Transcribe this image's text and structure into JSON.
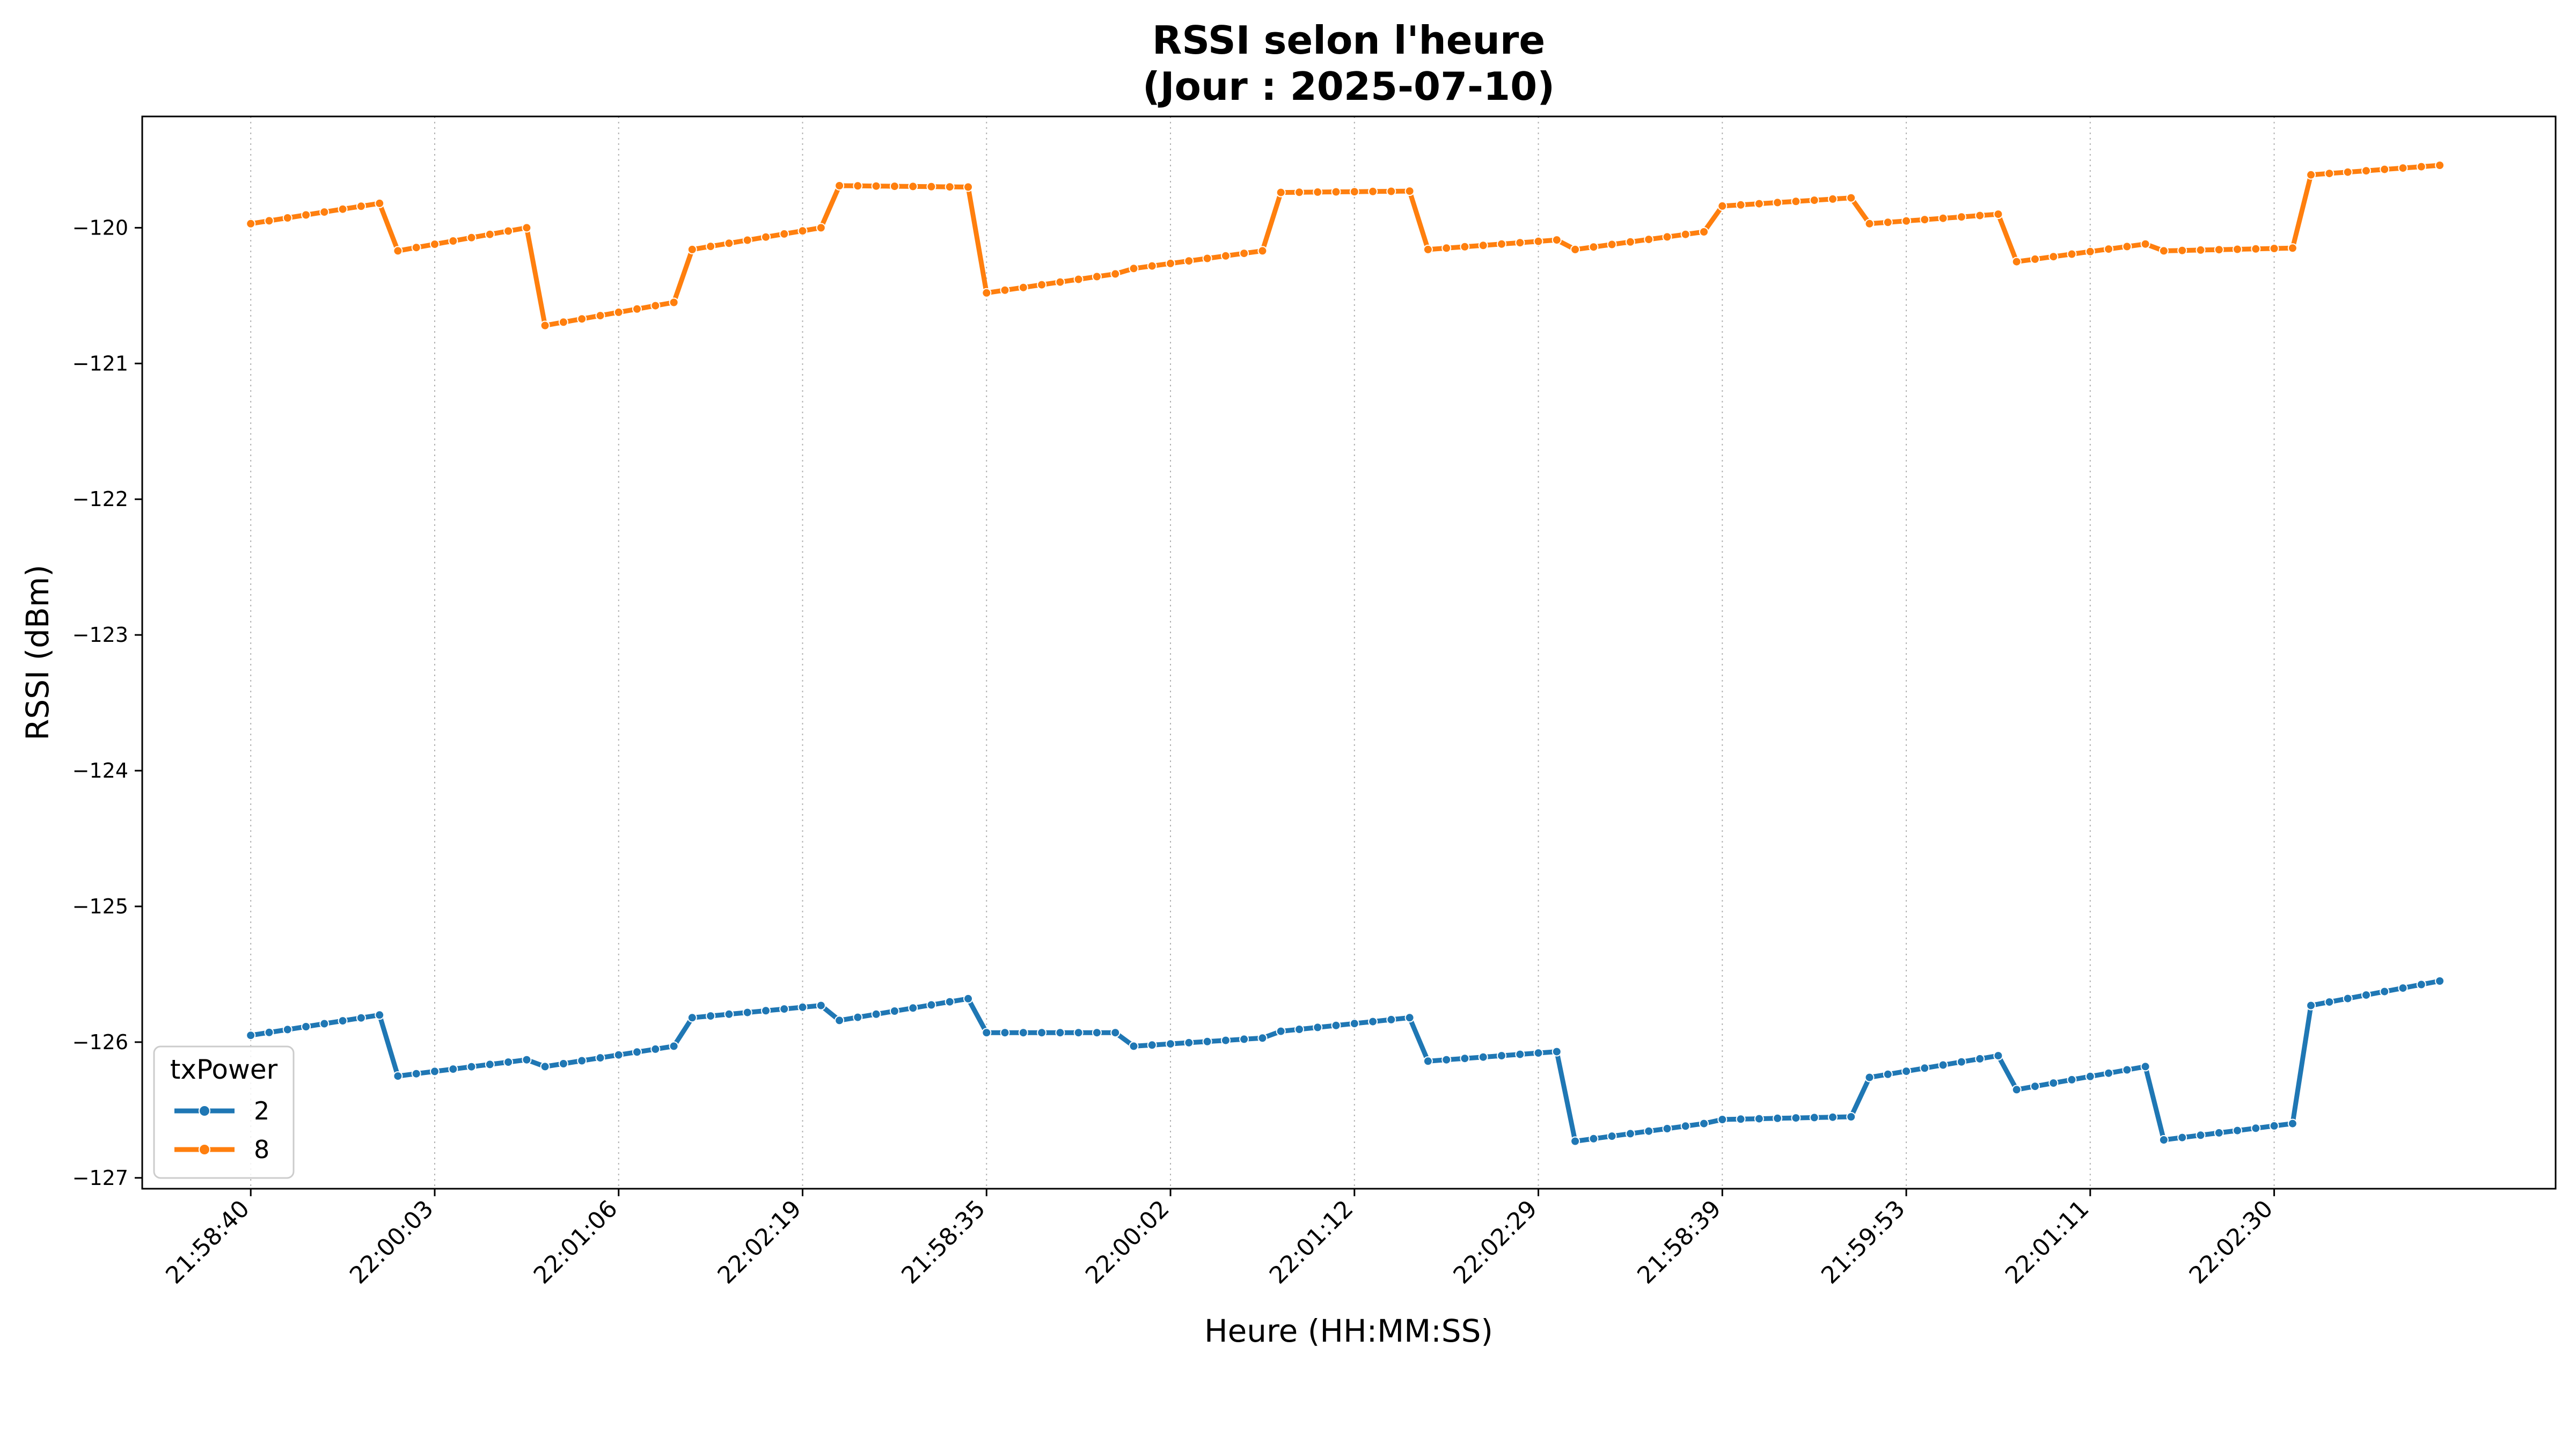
{
  "chart_data": {
    "type": "line",
    "title": "RSSI selon l'heure",
    "subtitle": "(Jour : 2025-07-10)",
    "xlabel": "Heure (HH:MM:SS)",
    "ylabel": "RSSI (dBm)",
    "ylim": [
      -127.08,
      -119.18
    ],
    "yticks": [
      -127,
      -126,
      -125,
      -124,
      -123,
      -122,
      -121,
      -120
    ],
    "ytick_labels": [
      "−127",
      "−126",
      "−125",
      "−124",
      "−123",
      "−122",
      "−121",
      "−120"
    ],
    "xtick_positions": [
      0,
      10,
      20,
      30,
      40,
      50,
      60,
      70,
      80,
      90,
      100,
      110
    ],
    "xtick_labels": [
      "21:58:40",
      "22:00:03",
      "22:01:06",
      "22:02:19",
      "21:58:35",
      "22:00:02",
      "22:01:12",
      "22:02:29",
      "21:58:39",
      "21:59:53",
      "22:01:11",
      "22:02:30"
    ],
    "xlim": [
      -5.9,
      125.3
    ],
    "x_range": [
      0,
      119
    ],
    "grid": "x-dotted",
    "legend": {
      "title": "txPower",
      "placement": "lower-left"
    },
    "series": [
      {
        "name": "2",
        "color": "#1f77b4",
        "segments": [
          {
            "from": 0,
            "to": 7,
            "start": -125.95,
            "end": -125.8
          },
          {
            "from": 8,
            "to": 15,
            "start": -126.25,
            "end": -126.13
          },
          {
            "from": 16,
            "to": 23,
            "start": -126.18,
            "end": -126.03
          },
          {
            "from": 24,
            "to": 31,
            "start": -125.82,
            "end": -125.73
          },
          {
            "from": 32,
            "to": 39,
            "start": -125.84,
            "end": -125.68
          },
          {
            "from": 40,
            "to": 47,
            "start": -125.93,
            "end": -125.93
          },
          {
            "from": 48,
            "to": 55,
            "start": -126.03,
            "end": -125.97
          },
          {
            "from": 56,
            "to": 63,
            "start": -125.92,
            "end": -125.82
          },
          {
            "from": 64,
            "to": 71,
            "start": -126.14,
            "end": -126.07
          },
          {
            "from": 72,
            "to": 79,
            "start": -126.73,
            "end": -126.6
          },
          {
            "from": 80,
            "to": 87,
            "start": -126.57,
            "end": -126.55
          },
          {
            "from": 88,
            "to": 95,
            "start": -126.26,
            "end": -126.1
          },
          {
            "from": 96,
            "to": 103,
            "start": -126.35,
            "end": -126.18
          },
          {
            "from": 104,
            "to": 111,
            "start": -126.72,
            "end": -126.6
          },
          {
            "from": 112,
            "to": 119,
            "start": -125.73,
            "end": -125.55
          }
        ]
      },
      {
        "name": "8",
        "color": "#ff7f0e",
        "segments": [
          {
            "from": 0,
            "to": 7,
            "start": -119.97,
            "end": -119.82
          },
          {
            "from": 8,
            "to": 15,
            "start": -120.17,
            "end": -120.0
          },
          {
            "from": 16,
            "to": 23,
            "start": -120.72,
            "end": -120.55
          },
          {
            "from": 24,
            "to": 31,
            "start": -120.16,
            "end": -120.0
          },
          {
            "from": 32,
            "to": 39,
            "start": -119.69,
            "end": -119.7
          },
          {
            "from": 40,
            "to": 47,
            "start": -120.48,
            "end": -120.34
          },
          {
            "from": 48,
            "to": 55,
            "start": -120.3,
            "end": -120.17
          },
          {
            "from": 56,
            "to": 63,
            "start": -119.74,
            "end": -119.73
          },
          {
            "from": 64,
            "to": 71,
            "start": -120.16,
            "end": -120.09
          },
          {
            "from": 72,
            "to": 79,
            "start": -120.16,
            "end": -120.03
          },
          {
            "from": 80,
            "to": 87,
            "start": -119.84,
            "end": -119.78
          },
          {
            "from": 88,
            "to": 95,
            "start": -119.97,
            "end": -119.9
          },
          {
            "from": 96,
            "to": 103,
            "start": -120.25,
            "end": -120.12
          },
          {
            "from": 104,
            "to": 111,
            "start": -120.17,
            "end": -120.15
          },
          {
            "from": 112,
            "to": 119,
            "start": -119.61,
            "end": -119.54
          }
        ]
      }
    ]
  }
}
